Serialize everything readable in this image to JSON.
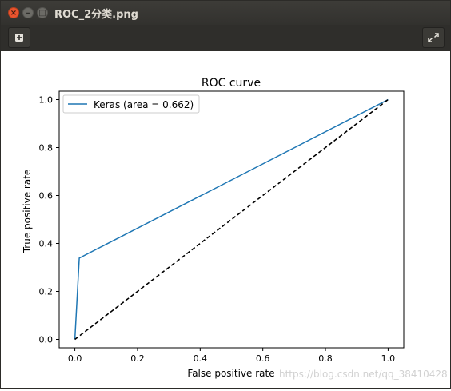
{
  "window": {
    "title": "ROC_2分类.png",
    "close_glyph": "×",
    "minimize_glyph": "–",
    "maximize_glyph": "□"
  },
  "toolbar": {
    "left_icon": "add-icon",
    "right_icon": "fullscreen-icon"
  },
  "chart_data": {
    "type": "line",
    "title": "ROC curve",
    "xlabel": "False positive rate",
    "ylabel": "True positive rate",
    "xlim": [
      -0.05,
      1.05
    ],
    "ylim": [
      -0.035,
      1.035
    ],
    "xticks": [
      0.0,
      0.2,
      0.4,
      0.6,
      0.8,
      1.0
    ],
    "yticks": [
      0.0,
      0.2,
      0.4,
      0.6,
      0.8,
      1.0
    ],
    "xtick_labels": [
      "0.0",
      "0.2",
      "0.4",
      "0.6",
      "0.8",
      "1.0"
    ],
    "ytick_labels": [
      "0.0",
      "0.2",
      "0.4",
      "0.6",
      "0.8",
      "1.0"
    ],
    "grid": false,
    "legend_position": "upper-left",
    "series": [
      {
        "name": "Keras (area = 0.662)",
        "color": "#1f77b4",
        "style": "solid",
        "x": [
          0.0,
          0.014,
          1.0
        ],
        "y": [
          0.0,
          0.339,
          1.0
        ]
      },
      {
        "color": "#000000",
        "style": "dashed",
        "x": [
          0.0,
          1.0
        ],
        "y": [
          0.0,
          1.0
        ]
      }
    ]
  },
  "watermark": "https://blog.csdn.net/qq_38410428"
}
